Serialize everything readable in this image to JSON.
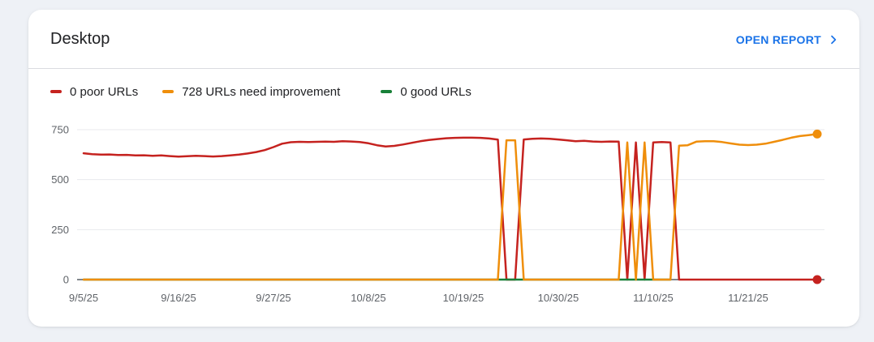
{
  "page": {
    "background": "#eef1f6"
  },
  "card": {
    "title": "Desktop",
    "action": {
      "label": "OPEN REPORT",
      "color": "#1a73e8",
      "chevron_icon": "chevron-right"
    }
  },
  "chart_data": {
    "type": "line",
    "title": "Desktop URLs by Core Web Vitals status over time",
    "legend_position": "top",
    "grid": "horizontal-only",
    "ylim": [
      0,
      830
    ],
    "y_ticks": [
      0,
      250,
      500,
      750
    ],
    "x_tick_labels": [
      "9/5/25",
      "9/16/25",
      "9/27/25",
      "10/8/25",
      "10/19/25",
      "10/30/25",
      "11/10/25",
      "11/21/25"
    ],
    "x_tick_indices": [
      0,
      11,
      22,
      33,
      44,
      55,
      66,
      77
    ],
    "grid_color": "#e8eaed",
    "axis_line_color": "#80868b",
    "tick_label_color": "#5f6368",
    "x": [
      "9/5/25",
      "9/6/25",
      "9/7/25",
      "9/8/25",
      "9/9/25",
      "9/10/25",
      "9/11/25",
      "9/12/25",
      "9/13/25",
      "9/14/25",
      "9/15/25",
      "9/16/25",
      "9/17/25",
      "9/18/25",
      "9/19/25",
      "9/20/25",
      "9/21/25",
      "9/22/25",
      "9/23/25",
      "9/24/25",
      "9/25/25",
      "9/26/25",
      "9/27/25",
      "9/28/25",
      "9/29/25",
      "9/30/25",
      "10/1/25",
      "10/2/25",
      "10/3/25",
      "10/4/25",
      "10/5/25",
      "10/6/25",
      "10/7/25",
      "10/8/25",
      "10/9/25",
      "10/10/25",
      "10/11/25",
      "10/12/25",
      "10/13/25",
      "10/14/25",
      "10/15/25",
      "10/16/25",
      "10/17/25",
      "10/18/25",
      "10/19/25",
      "10/20/25",
      "10/21/25",
      "10/22/25",
      "10/23/25",
      "10/24/25",
      "10/25/25",
      "10/26/25",
      "10/27/25",
      "10/28/25",
      "10/29/25",
      "10/30/25",
      "10/31/25",
      "11/1/25",
      "11/2/25",
      "11/3/25",
      "11/4/25",
      "11/5/25",
      "11/6/25",
      "11/7/25",
      "11/8/25",
      "11/9/25",
      "11/10/25",
      "11/11/25",
      "11/12/25",
      "11/13/25",
      "11/14/25",
      "11/15/25",
      "11/16/25",
      "11/17/25",
      "11/18/25",
      "11/19/25",
      "11/20/25",
      "11/21/25",
      "11/22/25",
      "11/23/25",
      "11/24/25",
      "11/25/25",
      "11/26/25",
      "11/27/25",
      "11/28/25",
      "11/29/25"
    ],
    "series": [
      {
        "key": "poor",
        "label": "0 poor URLs",
        "color": "#c5221f",
        "z": 0,
        "end_dot": true,
        "values": [
          632,
          627,
          625,
          626,
          623,
          624,
          621,
          622,
          619,
          621,
          618,
          615,
          617,
          619,
          618,
          616,
          618,
          621,
          625,
          631,
          638,
          648,
          663,
          680,
          687,
          689,
          688,
          689,
          690,
          689,
          692,
          691,
          688,
          682,
          672,
          666,
          669,
          676,
          684,
          692,
          698,
          703,
          707,
          709,
          710,
          710,
          709,
          706,
          700,
          0,
          0,
          701,
          704,
          706,
          704,
          701,
          697,
          692,
          694,
          691,
          689,
          691,
          690,
          0,
          686,
          0,
          686,
          688,
          686,
          0,
          0,
          0,
          0,
          0,
          0,
          0,
          0,
          0,
          0,
          0,
          0,
          0,
          0,
          0,
          0,
          0
        ]
      },
      {
        "key": "needs-improvement",
        "label": "728 URLs need improvement",
        "color": "#ef8e0b",
        "z": 2,
        "end_dot": true,
        "values": [
          0,
          0,
          0,
          0,
          0,
          0,
          0,
          0,
          0,
          0,
          0,
          0,
          0,
          0,
          0,
          0,
          0,
          0,
          0,
          0,
          0,
          0,
          0,
          0,
          0,
          0,
          0,
          0,
          0,
          0,
          0,
          0,
          0,
          0,
          0,
          0,
          0,
          0,
          0,
          0,
          0,
          0,
          0,
          0,
          0,
          0,
          0,
          0,
          0,
          697,
          697,
          0,
          0,
          0,
          0,
          0,
          0,
          0,
          0,
          0,
          0,
          0,
          0,
          686,
          0,
          686,
          0,
          0,
          0,
          670,
          672,
          690,
          692,
          692,
          688,
          681,
          675,
          673,
          675,
          680,
          689,
          699,
          710,
          718,
          723,
          728
        ]
      },
      {
        "key": "good",
        "label": "0 good URLs",
        "color": "#188038",
        "z": 1,
        "end_dot": false,
        "values": [
          0,
          0,
          0,
          0,
          0,
          0,
          0,
          0,
          0,
          0,
          0,
          0,
          0,
          0,
          0,
          0,
          0,
          0,
          0,
          0,
          0,
          0,
          0,
          0,
          0,
          0,
          0,
          0,
          0,
          0,
          0,
          0,
          0,
          0,
          0,
          0,
          0,
          0,
          0,
          0,
          0,
          0,
          0,
          0,
          0,
          0,
          0,
          0,
          0,
          0,
          0,
          0,
          0,
          0,
          0,
          0,
          0,
          0,
          0,
          0,
          0,
          0,
          0,
          0,
          0,
          0,
          0,
          0,
          0,
          null,
          null,
          null,
          null,
          null,
          null,
          null,
          null,
          null,
          null,
          null,
          null,
          null,
          null,
          null,
          null,
          null
        ]
      }
    ]
  }
}
